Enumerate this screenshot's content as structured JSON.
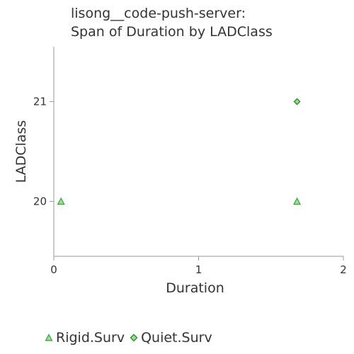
{
  "title": {
    "line1": "lisong__code-push-server:",
    "line2": "Span of Duration by LADClass"
  },
  "colors": {
    "axis": "#999999",
    "text": "#333333",
    "rigid_fill": "#9cdc9c",
    "rigid_stroke": "#3ca03c",
    "quiet_fill": "#9cdc9c",
    "quiet_stroke": "#2e8b2e"
  },
  "legend": {
    "rigid_label": "Rigid.Surv",
    "quiet_label": "Quiet.Surv",
    "rigid_icon": "triangle-icon",
    "quiet_icon": "diamond-icon"
  },
  "chart_data": {
    "type": "scatter",
    "title": "lisong__code-push-server: Span of Duration by LADClass",
    "xlabel": "Duration",
    "ylabel": "LADClass",
    "xlim": [
      0,
      2
    ],
    "ylim": [
      19.45,
      21.55
    ],
    "x_ticks": [
      0,
      1,
      2
    ],
    "y_ticks": [
      20,
      21
    ],
    "x_tick_labels": [
      "0",
      "1",
      "2"
    ],
    "y_tick_labels": [
      "20",
      "21"
    ],
    "grid": false,
    "legend_position": "bottom-left",
    "series": [
      {
        "name": "Rigid.Surv",
        "marker": "triangle",
        "points": [
          {
            "x": 0.05,
            "y": 20
          },
          {
            "x": 1.68,
            "y": 20
          }
        ]
      },
      {
        "name": "Quiet.Surv",
        "marker": "diamond",
        "points": [
          {
            "x": 1.68,
            "y": 21
          }
        ]
      }
    ]
  }
}
